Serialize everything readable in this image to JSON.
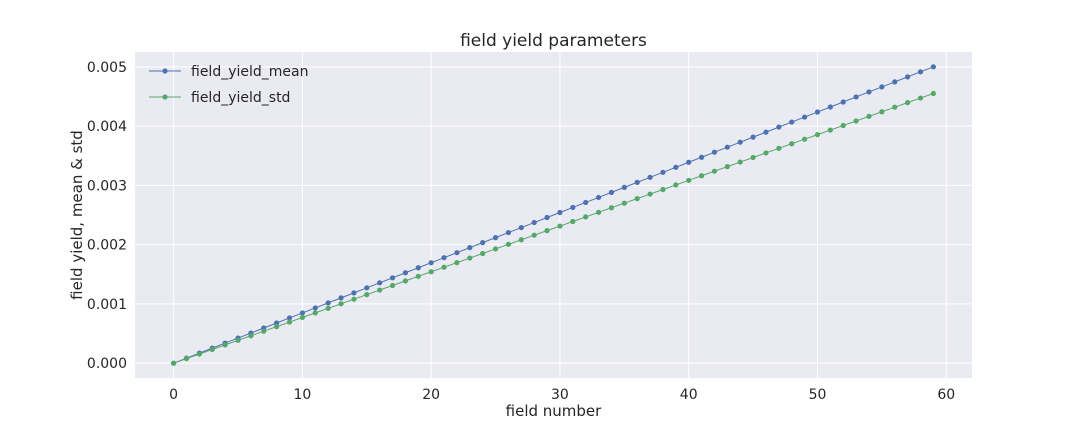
{
  "chart_data": {
    "type": "line",
    "title": "field yield parameters",
    "xlabel": "field number",
    "ylabel": "field yield, mean & std",
    "xlim": [
      -3,
      62
    ],
    "ylim": [
      -0.00025,
      0.00525
    ],
    "xticks": [
      0,
      10,
      20,
      30,
      40,
      50,
      60
    ],
    "yticks": [
      0.0,
      0.001,
      0.002,
      0.003,
      0.004,
      0.005
    ],
    "xtick_labels": [
      "0",
      "10",
      "20",
      "30",
      "40",
      "50",
      "60"
    ],
    "ytick_labels": [
      "0.000",
      "0.001",
      "0.002",
      "0.003",
      "0.004",
      "0.005"
    ],
    "grid": true,
    "legend_position": "top-left",
    "x": {
      "start": 0,
      "stop": 59,
      "step": 1
    },
    "series": [
      {
        "name": "field_yield_mean",
        "color": "#4c72b0",
        "start_value": 0.0,
        "end_value": 0.005
      },
      {
        "name": "field_yield_std",
        "color": "#55a868",
        "start_value": 0.0,
        "end_value": 0.00455
      }
    ],
    "colors": {
      "plot_background": "#eaeaf2",
      "grid": "#ffffff",
      "text": "#262626"
    }
  }
}
